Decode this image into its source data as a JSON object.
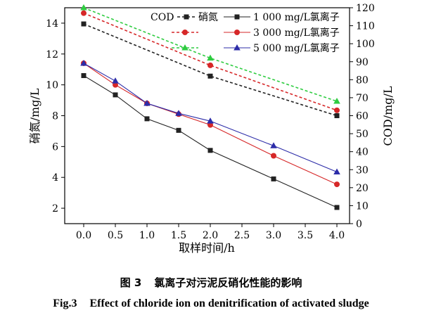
{
  "chart_data": {
    "type": "line",
    "x": [
      0.0,
      0.5,
      1.0,
      1.5,
      2.0,
      3.0,
      4.0
    ],
    "xlabel": "取样时间/h",
    "xlim": [
      -0.3,
      4.2
    ],
    "xticks": [
      0.0,
      0.5,
      1.0,
      1.5,
      2.0,
      2.5,
      3.0,
      3.5,
      4.0
    ],
    "xtick_labels": [
      "0.0",
      "0.5",
      "1.0",
      "1.5",
      "2.0",
      "2.5",
      "3.0",
      "3.5",
      "4.0"
    ],
    "ylabel_left": "硝氮/mg/L",
    "ylim_left": [
      1,
      15
    ],
    "yticks_left": [
      2,
      4,
      6,
      8,
      10,
      12,
      14
    ],
    "ylabel_right": "COD/mg/L",
    "ylim_right": [
      0,
      120
    ],
    "yticks_right": [
      0,
      10,
      20,
      30,
      40,
      50,
      60,
      70,
      80,
      90,
      100,
      110,
      120
    ],
    "series": [
      {
        "name": "硝氮 1 000 mg/L氯离子",
        "axis": "left",
        "style": "solid",
        "marker": "square",
        "color": "#222222",
        "values": [
          10.6,
          9.35,
          7.8,
          7.05,
          5.75,
          3.9,
          2.05
        ]
      },
      {
        "name": "硝氮 3 000 mg/L氯离子",
        "axis": "left",
        "style": "solid",
        "marker": "circle",
        "color": "#d62728",
        "values": [
          11.4,
          10.0,
          8.8,
          8.1,
          7.4,
          5.4,
          3.55
        ]
      },
      {
        "name": "硝氮 5 000 mg/L氯离子",
        "axis": "left",
        "style": "solid",
        "marker": "triangle",
        "color": "#2c2ca8",
        "values": [
          11.4,
          10.25,
          8.8,
          8.15,
          7.65,
          6.05,
          4.35
        ]
      },
      {
        "name": "COD 1 000 mg/L氯离子",
        "axis": "right",
        "style": "dashed",
        "marker": "square",
        "color": "#222222",
        "x": [
          0.0,
          2.0,
          4.0
        ],
        "values": [
          111,
          82,
          60
        ]
      },
      {
        "name": "COD 3 000 mg/L氯离子",
        "axis": "right",
        "style": "dashed",
        "marker": "circle",
        "color": "#d62728",
        "x": [
          0.0,
          2.0,
          4.0
        ],
        "values": [
          117,
          88,
          63
        ]
      },
      {
        "name": "COD 5 000 mg/L氯离子",
        "axis": "right",
        "style": "dashed",
        "marker": "triangle",
        "color": "#2ecc40",
        "x": [
          0.0,
          2.0,
          4.0
        ],
        "values": [
          120,
          92,
          68
        ]
      }
    ],
    "legend": {
      "position": "top-right",
      "header_cod": "COD",
      "header_nitrate": "硝氮",
      "entries": [
        "1 000 mg/L氯离子",
        "3 000 mg/L氯离子",
        "5 000 mg/L氯离子"
      ]
    }
  },
  "caption": {
    "cn_label": "图 3",
    "cn_title": "氯离子对污泥反硝化性能的影响",
    "en_label": "Fig.3",
    "en_title": "Effect of chloride ion on denitrification of activated sludge"
  }
}
